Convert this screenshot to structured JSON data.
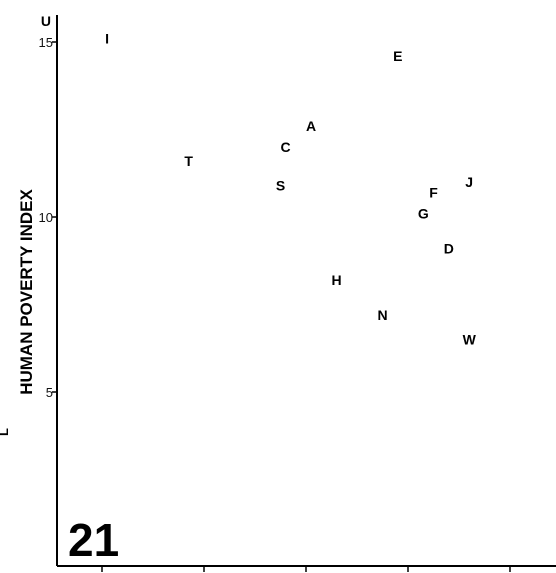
{
  "panel_label": "21",
  "edge_letter": "L",
  "chart_data": {
    "type": "scatter",
    "title": "",
    "xlabel": "",
    "ylabel": "HUMAN POVERTY INDEX",
    "ylim": [
      0,
      16
    ],
    "xlim": [
      0.05,
      1.05
    ],
    "yticks": [
      5,
      10,
      15
    ],
    "ytick_labels": [
      "5",
      "10",
      "15"
    ],
    "xticks": [
      0.25,
      0.45,
      0.65,
      0.85,
      1.05
    ],
    "grid": false,
    "legend": "none",
    "points": [
      {
        "label": "U",
        "x": 0.14,
        "y": 15.6
      },
      {
        "label": "I",
        "x": 0.26,
        "y": 15.1
      },
      {
        "label": "E",
        "x": 0.83,
        "y": 14.6
      },
      {
        "label": "A",
        "x": 0.66,
        "y": 12.6
      },
      {
        "label": "C",
        "x": 0.61,
        "y": 12.0
      },
      {
        "label": "T",
        "x": 0.42,
        "y": 11.6
      },
      {
        "label": "S",
        "x": 0.6,
        "y": 10.9
      },
      {
        "label": "J",
        "x": 0.97,
        "y": 11.0
      },
      {
        "label": "F",
        "x": 0.9,
        "y": 10.7
      },
      {
        "label": "G",
        "x": 0.88,
        "y": 10.1
      },
      {
        "label": "D",
        "x": 0.93,
        "y": 9.1
      },
      {
        "label": "H",
        "x": 0.71,
        "y": 8.2
      },
      {
        "label": "N",
        "x": 0.8,
        "y": 7.2
      },
      {
        "label": "W",
        "x": 0.97,
        "y": 6.5
      }
    ]
  }
}
